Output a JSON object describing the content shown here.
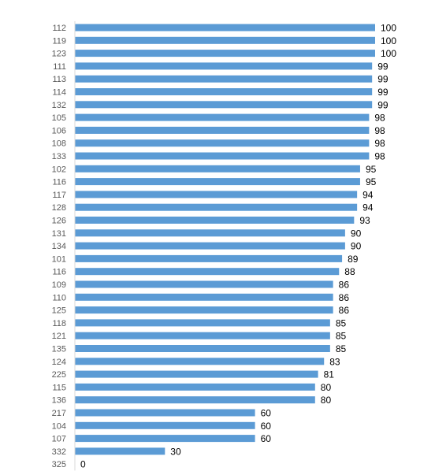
{
  "chart_data": {
    "type": "bar",
    "orientation": "horizontal",
    "categories": [
      "112",
      "119",
      "123",
      "111",
      "113",
      "114",
      "132",
      "105",
      "106",
      "108",
      "133",
      "102",
      "116",
      "117",
      "128",
      "126",
      "131",
      "134",
      "101",
      "116",
      "109",
      "110",
      "125",
      "118",
      "121",
      "135",
      "124",
      "225",
      "115",
      "136",
      "217",
      "104",
      "107",
      "332",
      "325"
    ],
    "values": [
      100,
      100,
      100,
      99,
      99,
      99,
      99,
      98,
      98,
      98,
      98,
      95,
      95,
      94,
      94,
      93,
      90,
      90,
      89,
      88,
      86,
      86,
      86,
      85,
      85,
      85,
      83,
      81,
      80,
      80,
      60,
      60,
      60,
      30,
      0
    ],
    "xlim": [
      0,
      100
    ],
    "grid": false,
    "legend": "none",
    "data_labels": true,
    "colors": {
      "bar": "#5b9bd5",
      "axis": "#d9d9d9",
      "category_text": "#595959",
      "value_text": "#000000"
    }
  }
}
